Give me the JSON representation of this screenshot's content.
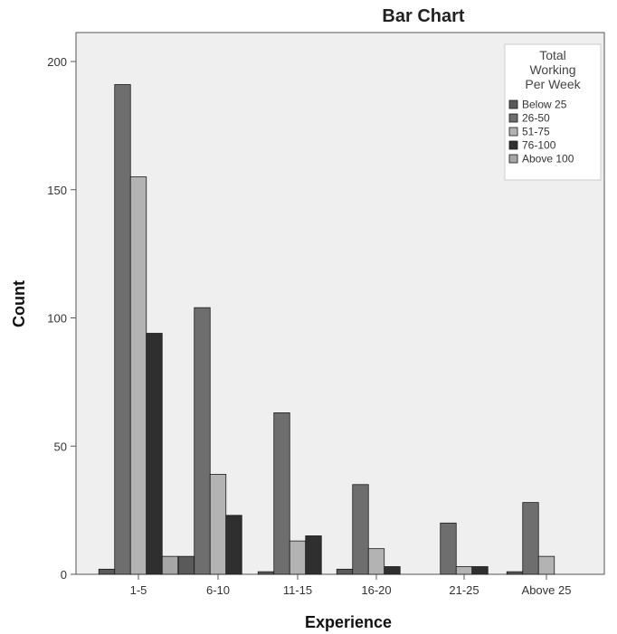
{
  "chart_data": {
    "type": "bar",
    "title": "Bar Chart",
    "xlabel": "Experience",
    "ylabel": "Count",
    "ylim": [
      0,
      210
    ],
    "yticks": [
      0,
      50,
      100,
      150,
      200
    ],
    "grid": false,
    "legend_placement": "top-right",
    "legend_title_lines": [
      "Total",
      "Working",
      "Per Week"
    ],
    "categories": [
      "1-5",
      "6-10",
      "11-15",
      "16-20",
      "21-25",
      "Above 25"
    ],
    "series": [
      {
        "name": "Below 25",
        "color": "#5a5a5a",
        "values": [
          2,
          7,
          1,
          2,
          0,
          1
        ]
      },
      {
        "name": "26-50",
        "color": "#6e6e6e",
        "values": [
          191,
          104,
          63,
          35,
          20,
          28
        ]
      },
      {
        "name": "51-75",
        "color": "#b3b3b3",
        "values": [
          155,
          39,
          13,
          10,
          3,
          7
        ]
      },
      {
        "name": "76-100",
        "color": "#2f2f2f",
        "values": [
          94,
          23,
          15,
          3,
          3,
          0
        ]
      },
      {
        "name": "Above 100",
        "color": "#a6a6a6",
        "values": [
          7,
          0,
          0,
          0,
          0,
          0
        ]
      }
    ],
    "colors": {
      "plot_background": "#efefef",
      "axis": "#555555"
    }
  }
}
